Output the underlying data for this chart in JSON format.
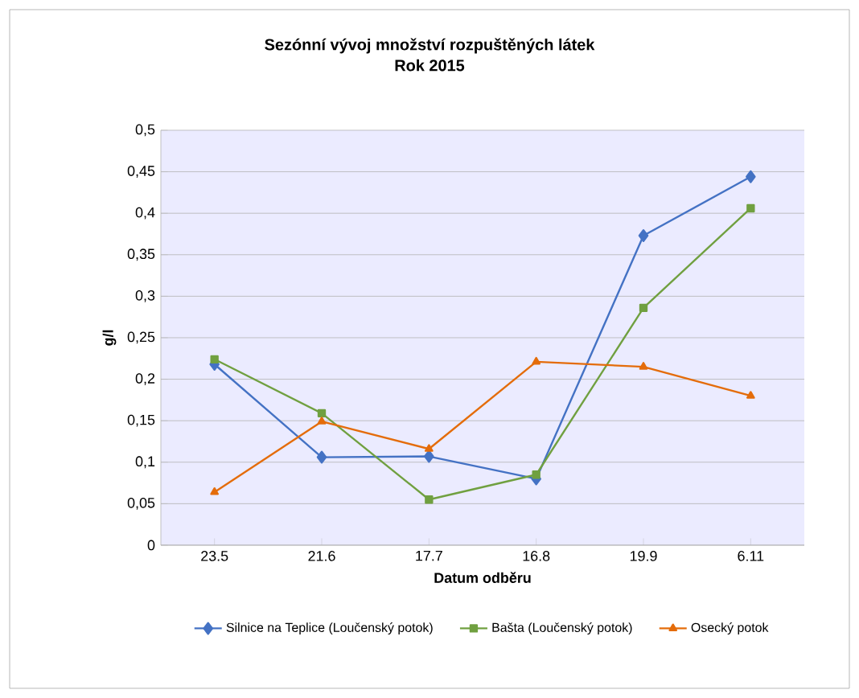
{
  "chart_data": {
    "type": "line",
    "title": "Sezónní vývoj množství rozpuštěných látek\nRok 2015",
    "xlabel": "Datum odběru",
    "ylabel": "g/l",
    "categories": [
      "23.5",
      "21.6",
      "17.7",
      "16.8",
      "19.9",
      "6.11"
    ],
    "series": [
      {
        "name": "Silnice na Teplice (Loučenský potok)",
        "color": "#4472c4",
        "marker": "diamond",
        "values": [
          0.218,
          0.106,
          0.107,
          0.08,
          0.373,
          0.444
        ]
      },
      {
        "name": "Bašta (Loučenský potok)",
        "color": "#70a040",
        "marker": "square",
        "values": [
          0.224,
          0.159,
          0.055,
          0.085,
          0.286,
          0.406
        ]
      },
      {
        "name": "Osecký potok",
        "color": "#e46c0a",
        "marker": "triangle",
        "values": [
          0.064,
          0.149,
          0.116,
          0.221,
          0.215,
          0.18
        ]
      }
    ],
    "ylim": [
      0,
      0.5
    ],
    "yticks": [
      0,
      {
        "value": 0.05,
        "label": "0,05"
      },
      {
        "value": 0.1,
        "label": "0,1"
      },
      {
        "value": 0.15,
        "label": "0,15"
      },
      {
        "value": 0.2,
        "label": "0,2"
      },
      {
        "value": 0.25,
        "label": "0,25"
      },
      {
        "value": 0.3,
        "label": "0,3"
      },
      {
        "value": 0.35,
        "label": "0,35"
      },
      {
        "value": 0.4,
        "label": "0,4"
      },
      {
        "value": 0.45,
        "label": "0,45"
      },
      {
        "value": 0.5,
        "label": "0,5"
      }
    ],
    "grid": "y",
    "legend": "bottom",
    "line_style": "solid"
  }
}
